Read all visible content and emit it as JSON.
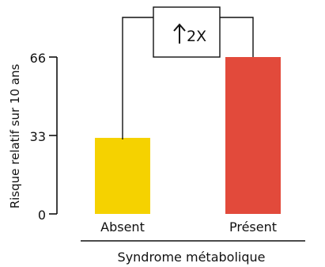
{
  "chart_data": {
    "type": "bar",
    "categories": [
      "Absent",
      "Présent"
    ],
    "values": [
      32,
      66
    ],
    "colors": [
      "#f5d200",
      "#e24a3b"
    ],
    "ylabel": "Risque relatif sur 10 ans",
    "xlabel": "Syndrome métabolique",
    "yticks": [
      "0",
      "33",
      "66"
    ],
    "ylim": [
      0,
      66
    ],
    "grid": false,
    "annotation": {
      "text": "2X",
      "arrow": "up-arrow-icon"
    }
  }
}
